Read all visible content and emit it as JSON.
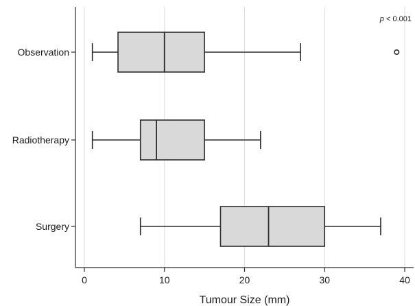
{
  "chart_data": {
    "type": "boxplot",
    "orientation": "horizontal",
    "xlabel": "Tumour Size (mm)",
    "ylabel": "",
    "xlim": [
      -2,
      42
    ],
    "xticks": [
      0,
      10,
      20,
      30,
      40
    ],
    "grid": "vertical",
    "annotation": {
      "p_symbol": "p",
      "rest": " < 0.001"
    },
    "colors": {
      "box_fill": "#d9d9d9",
      "stroke": "#2b2b2b",
      "grid": "#dcdcdc"
    },
    "groups": [
      {
        "name": "Observation",
        "whisker_low": 1,
        "q1": 4.2,
        "median": 10,
        "q3": 15,
        "whisker_high": 27,
        "outliers": [
          39
        ]
      },
      {
        "name": "Radiotherapy",
        "whisker_low": 1,
        "q1": 7,
        "median": 9,
        "q3": 15,
        "whisker_high": 22,
        "outliers": []
      },
      {
        "name": "Surgery",
        "whisker_low": 7,
        "q1": 17,
        "median": 23,
        "q3": 30,
        "whisker_high": 37,
        "outliers": []
      }
    ]
  }
}
